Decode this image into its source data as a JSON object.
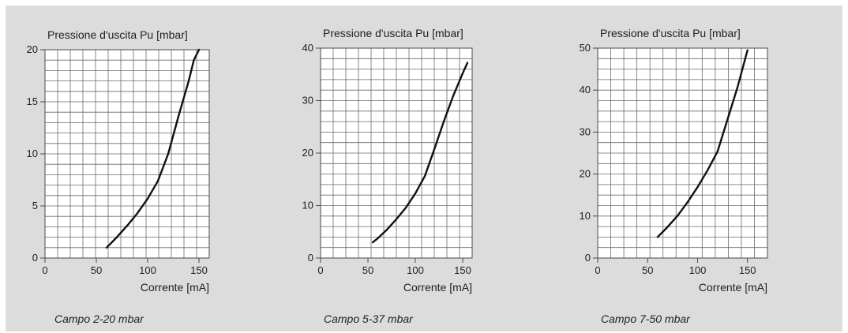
{
  "chart_data": [
    {
      "type": "line",
      "title": "Pressione d'uscita Pu [mbar]",
      "xlabel": "Corrente [mA]",
      "ylabel": "",
      "caption": "Campo 2-20 mbar",
      "xlim": [
        0,
        160
      ],
      "ylim": [
        0,
        20
      ],
      "xticks": [
        "0",
        "50",
        "100",
        "150"
      ],
      "yticks": [
        "0",
        "5",
        "10",
        "15",
        "20"
      ],
      "grid": true,
      "series": [
        {
          "x": [
            60,
            70,
            80,
            90,
            100,
            110,
            120,
            130,
            140,
            145,
            150
          ],
          "y": [
            1.0,
            2.0,
            3.1,
            4.3,
            5.7,
            7.4,
            10.0,
            13.6,
            17.0,
            19.0,
            20.0
          ]
        }
      ]
    },
    {
      "type": "line",
      "title": "Pressione d'uscita Pu [mbar]",
      "xlabel": "Corrente [mA]",
      "ylabel": "",
      "caption": "Campo 5-37 mbar",
      "xlim": [
        0,
        160
      ],
      "ylim": [
        0,
        40
      ],
      "xticks": [
        "0",
        "50",
        "100",
        "150"
      ],
      "yticks": [
        "0",
        "10",
        "20",
        "30",
        "40"
      ],
      "grid": true,
      "series": [
        {
          "x": [
            55,
            60,
            70,
            80,
            90,
            100,
            110,
            120,
            130,
            140,
            150,
            155
          ],
          "y": [
            3.0,
            3.7,
            5.4,
            7.4,
            9.6,
            12.3,
            15.6,
            20.7,
            26.0,
            30.9,
            35.2,
            37.2
          ]
        }
      ]
    },
    {
      "type": "line",
      "title": "Pressione d'uscita Pu [mbar]",
      "xlabel": "Corrente [mA]",
      "ylabel": "",
      "caption": "Campo 7-50 mbar",
      "xlim": [
        0,
        170
      ],
      "ylim": [
        0,
        50
      ],
      "xticks": [
        "0",
        "50",
        "100",
        "150"
      ],
      "yticks": [
        "0",
        "10",
        "20",
        "30",
        "40",
        "50"
      ],
      "grid": true,
      "series": [
        {
          "x": [
            60,
            70,
            80,
            90,
            100,
            110,
            120,
            130,
            140,
            150
          ],
          "y": [
            5.0,
            7.4,
            10.1,
            13.3,
            16.9,
            20.9,
            25.4,
            33.0,
            40.7,
            49.5
          ]
        }
      ]
    }
  ]
}
